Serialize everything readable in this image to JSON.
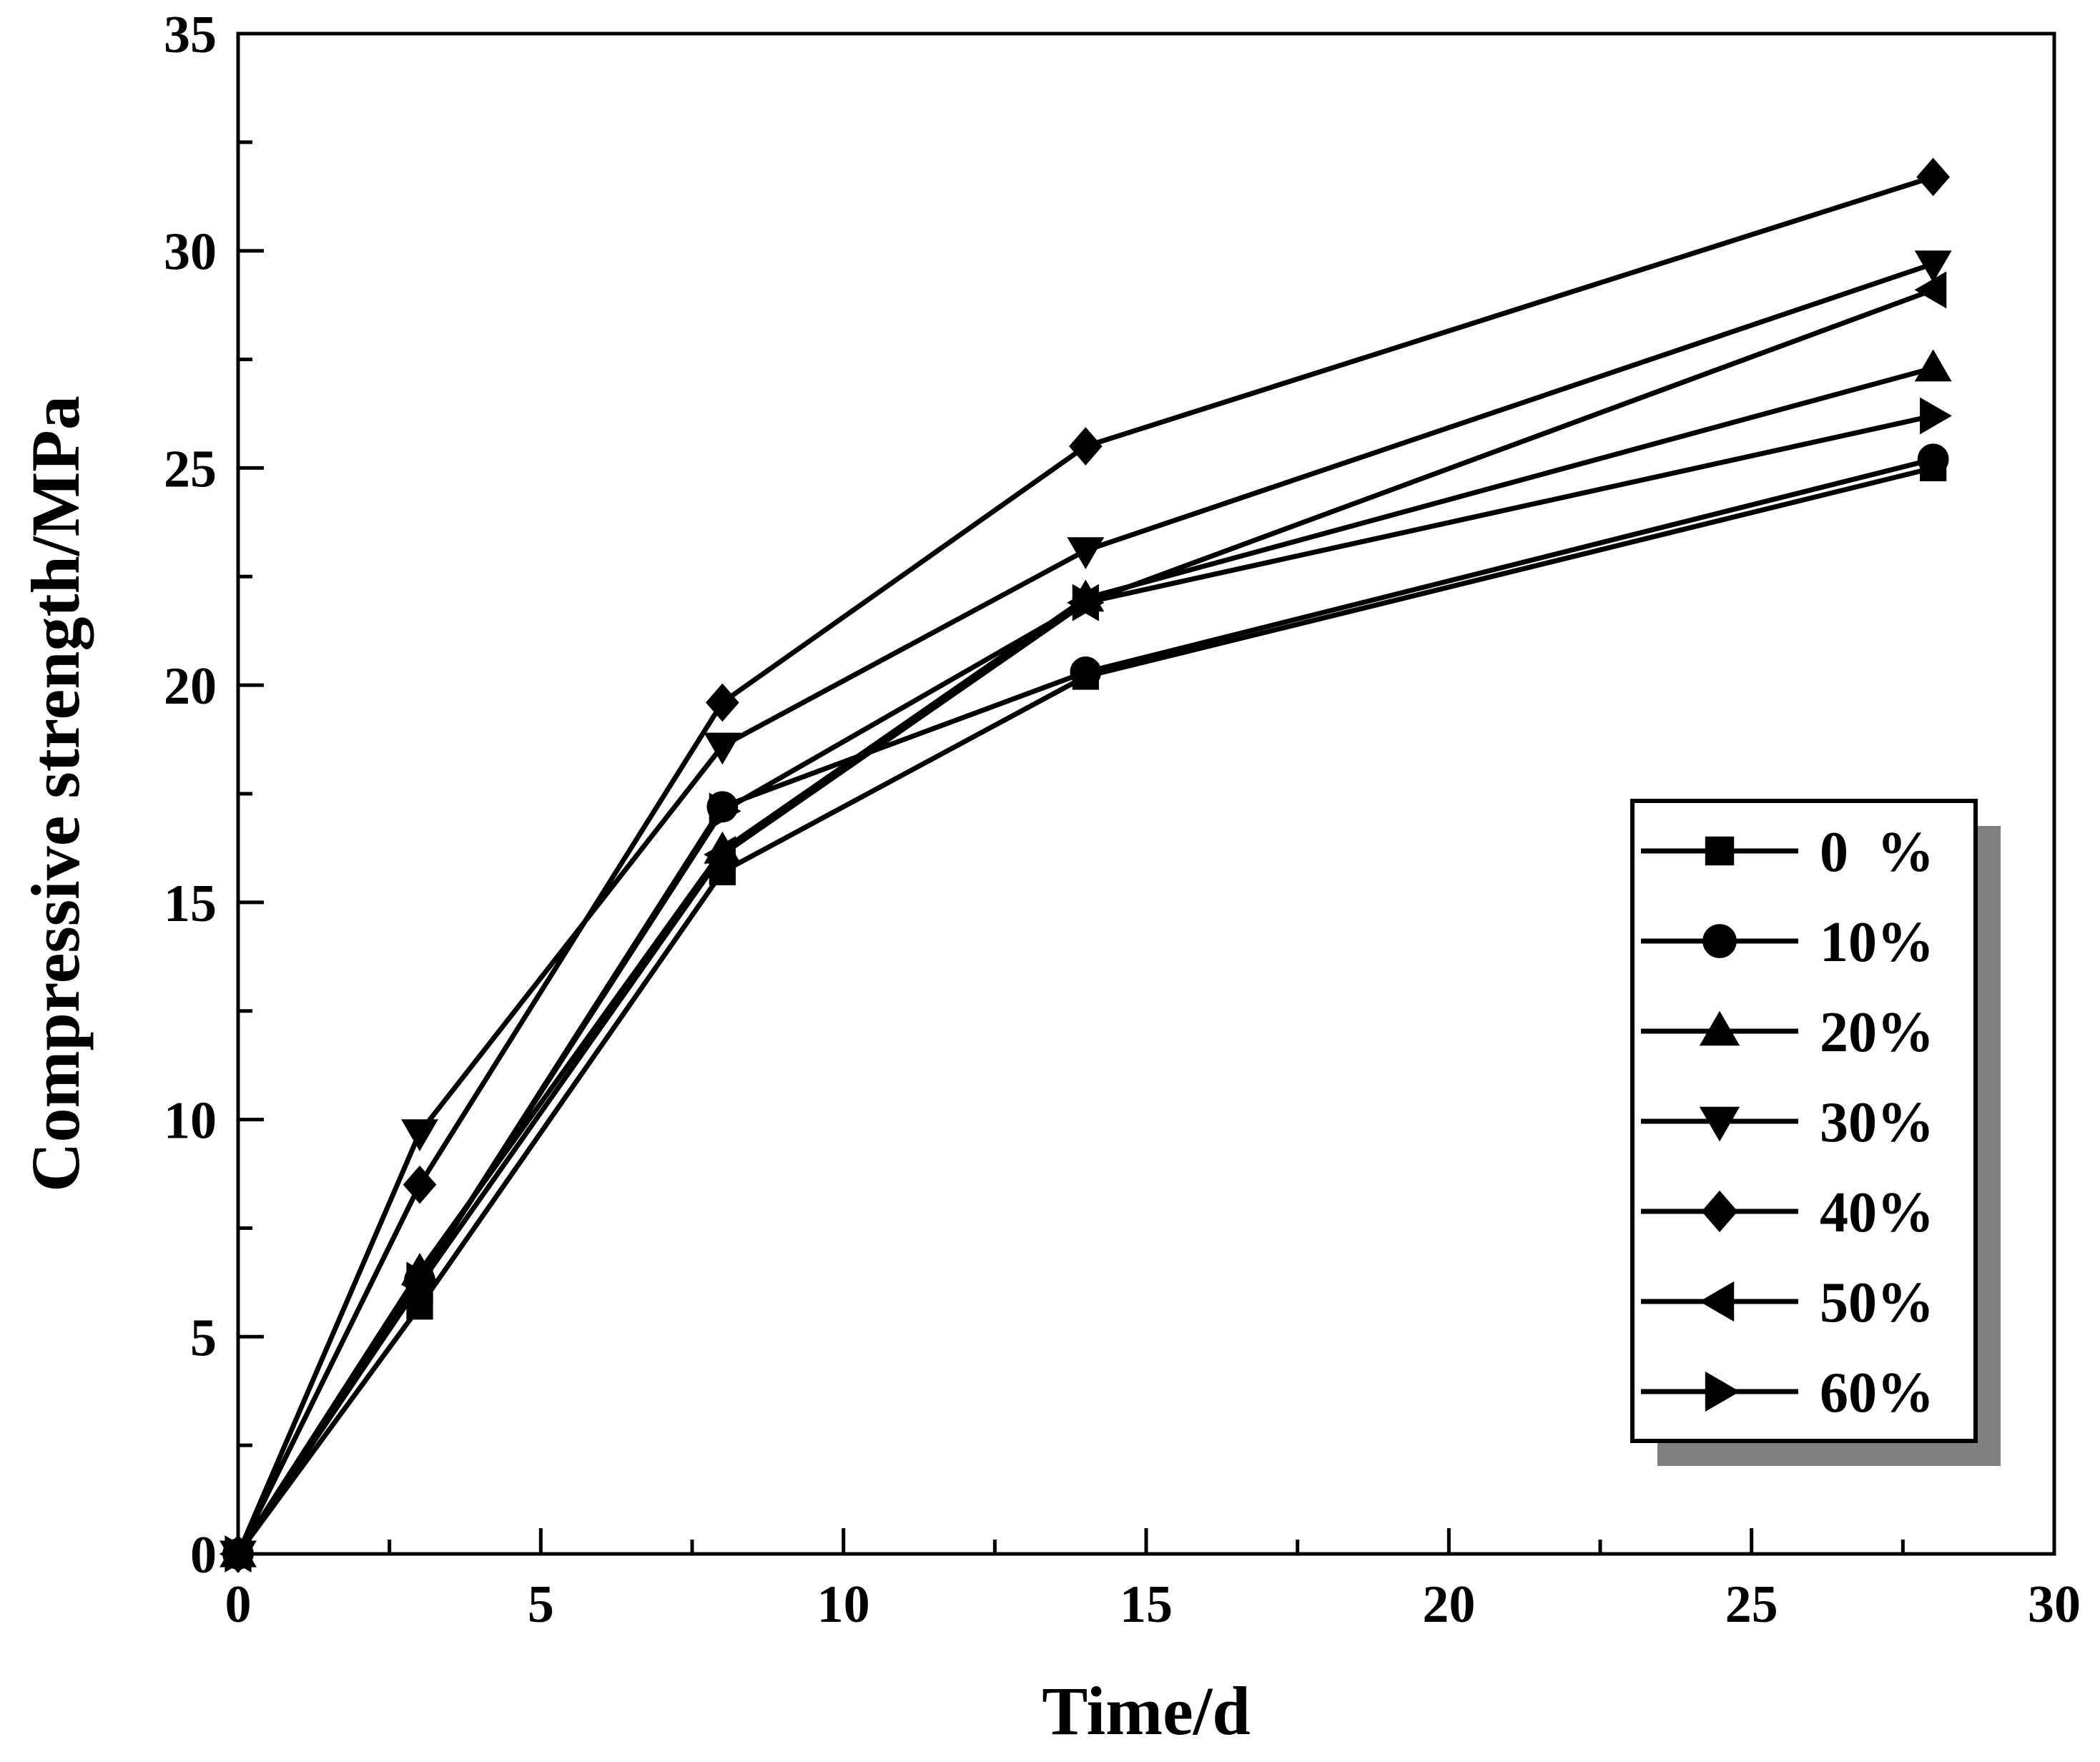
{
  "chart_data": {
    "type": "line",
    "title": "",
    "xlabel": "Time/d",
    "ylabel": "Compressive strength/MPa",
    "xlim": [
      0,
      30
    ],
    "ylim": [
      0,
      35
    ],
    "xticks": [
      0,
      5,
      10,
      15,
      20,
      25,
      30
    ],
    "yticks": [
      0,
      5,
      10,
      15,
      20,
      25,
      30,
      35
    ],
    "x": [
      0,
      3,
      8,
      14,
      28
    ],
    "legend_position": "bottom-right",
    "series": [
      {
        "name": "0  %",
        "marker": "square",
        "values": [
          0,
          5.7,
          15.7,
          20.2,
          25.0
        ]
      },
      {
        "name": "10%",
        "marker": "circle",
        "values": [
          0,
          6.3,
          17.2,
          20.3,
          25.2
        ]
      },
      {
        "name": "20%",
        "marker": "triangle-up",
        "values": [
          0,
          6.5,
          16.2,
          22.0,
          27.3
        ]
      },
      {
        "name": "30%",
        "marker": "triangle-down",
        "values": [
          0,
          9.7,
          18.6,
          23.1,
          29.7
        ]
      },
      {
        "name": "40%",
        "marker": "diamond",
        "values": [
          0,
          8.5,
          19.6,
          25.5,
          31.7
        ]
      },
      {
        "name": "50%",
        "marker": "triangle-left",
        "values": [
          0,
          6.2,
          16.1,
          21.9,
          29.1
        ]
      },
      {
        "name": "60%",
        "marker": "triangle-right",
        "values": [
          0,
          6.3,
          17.1,
          21.9,
          26.2
        ]
      }
    ],
    "colors": {
      "line": "#000000",
      "marker": "#000000",
      "legend_shadow": "#808080"
    }
  }
}
